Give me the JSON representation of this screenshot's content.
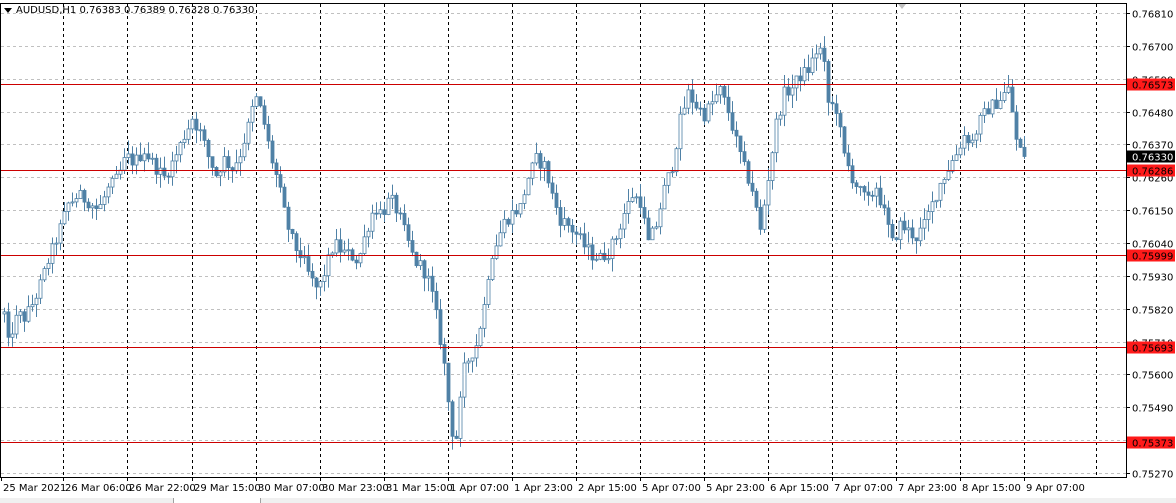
{
  "window": {
    "symbol_header": "AUDUSD,H1  0.76383 0.76389 0.76328 0.76330"
  },
  "colors": {
    "background": "#ffffff",
    "grid": "#c0c0c0",
    "vgrid": "#000000",
    "candle": "#4f81a6",
    "level_line": "#cc0000",
    "level_label_bg": "#ff1a1a",
    "current_price_bg": "#000000"
  },
  "chart_data": {
    "type": "candlestick",
    "symbol": "AUDUSD",
    "timeframe": "H1",
    "ohlc_header": {
      "open": 0.76383,
      "high": 0.76389,
      "low": 0.76328,
      "close": 0.7633
    },
    "ylim": [
      0.7525,
      0.7683
    ],
    "y_ticks": [
      "0.76810",
      "0.76700",
      "0.76590",
      "0.76480",
      "0.76370",
      "0.76260",
      "0.76150",
      "0.76040",
      "0.75930",
      "0.75820",
      "0.75710",
      "0.75600",
      "0.75490",
      "0.75380",
      "0.75270"
    ],
    "x_ticks": [
      "25 Mar 2021",
      "26 Mar 06:00",
      "26 Mar 22:00",
      "29 Mar 15:00",
      "30 Mar 07:00",
      "30 Mar 23:00",
      "31 Mar 15:00",
      "1 Apr 07:00",
      "1 Apr 23:00",
      "2 Apr 15:00",
      "5 Apr 07:00",
      "5 Apr 23:00",
      "6 Apr 15:00",
      "7 Apr 07:00",
      "7 Apr 23:00",
      "8 Apr 15:00",
      "9 Apr 07:00"
    ],
    "levels": [
      {
        "price": 0.76573,
        "label": "0.76573"
      },
      {
        "price": 0.76286,
        "label": "0.76286"
      },
      {
        "price": 0.75999,
        "label": "0.75999"
      },
      {
        "price": 0.75693,
        "label": "0.75693"
      },
      {
        "price": 0.75373,
        "label": "0.75373"
      }
    ],
    "current_price": {
      "price": 0.7633,
      "label": "0.76330"
    },
    "path": [
      [
        0,
        0.759
      ],
      [
        3,
        0.7584
      ],
      [
        7,
        0.7569
      ],
      [
        12,
        0.7575
      ],
      [
        18,
        0.758
      ],
      [
        24,
        0.7579
      ],
      [
        30,
        0.7582
      ],
      [
        38,
        0.7588
      ],
      [
        48,
        0.7598
      ],
      [
        58,
        0.7607
      ],
      [
        68,
        0.7617
      ],
      [
        78,
        0.762
      ],
      [
        88,
        0.7618
      ],
      [
        98,
        0.7615
      ],
      [
        108,
        0.7622
      ],
      [
        118,
        0.7626
      ],
      [
        126,
        0.7633
      ],
      [
        134,
        0.7631
      ],
      [
        144,
        0.7635
      ],
      [
        154,
        0.763
      ],
      [
        164,
        0.7626
      ],
      [
        174,
        0.7632
      ],
      [
        184,
        0.764
      ],
      [
        192,
        0.7646
      ],
      [
        200,
        0.7641
      ],
      [
        208,
        0.7633
      ],
      [
        216,
        0.7627
      ],
      [
        224,
        0.7632
      ],
      [
        232,
        0.7629
      ],
      [
        240,
        0.7634
      ],
      [
        248,
        0.7643
      ],
      [
        255,
        0.7653
      ],
      [
        262,
        0.7647
      ],
      [
        270,
        0.7634
      ],
      [
        278,
        0.7624
      ],
      [
        286,
        0.7611
      ],
      [
        294,
        0.7603
      ],
      [
        302,
        0.7599
      ],
      [
        310,
        0.7592
      ],
      [
        318,
        0.7588
      ],
      [
        326,
        0.7596
      ],
      [
        334,
        0.7604
      ],
      [
        342,
        0.7601
      ],
      [
        350,
        0.76
      ],
      [
        358,
        0.7598
      ],
      [
        366,
        0.7608
      ],
      [
        374,
        0.7616
      ],
      [
        382,
        0.7614
      ],
      [
        390,
        0.7619
      ],
      [
        398,
        0.7614
      ],
      [
        406,
        0.7606
      ],
      [
        414,
        0.7598
      ],
      [
        422,
        0.7596
      ],
      [
        430,
        0.759
      ],
      [
        438,
        0.7576
      ],
      [
        444,
        0.7563
      ],
      [
        450,
        0.7545
      ],
      [
        454,
        0.7537
      ],
      [
        458,
        0.7541
      ],
      [
        462,
        0.756
      ],
      [
        468,
        0.7565
      ],
      [
        476,
        0.757
      ],
      [
        484,
        0.7583
      ],
      [
        490,
        0.7599
      ],
      [
        496,
        0.7604
      ],
      [
        504,
        0.7611
      ],
      [
        512,
        0.7614
      ],
      [
        520,
        0.7616
      ],
      [
        528,
        0.7626
      ],
      [
        536,
        0.7632
      ],
      [
        544,
        0.763
      ],
      [
        552,
        0.762
      ],
      [
        560,
        0.7612
      ],
      [
        568,
        0.761
      ],
      [
        576,
        0.7607
      ],
      [
        584,
        0.7603
      ],
      [
        592,
        0.76
      ],
      [
        600,
        0.7599
      ],
      [
        608,
        0.7601
      ],
      [
        616,
        0.7606
      ],
      [
        624,
        0.7614
      ],
      [
        632,
        0.762
      ],
      [
        640,
        0.7618
      ],
      [
        648,
        0.7604
      ],
      [
        656,
        0.761
      ],
      [
        664,
        0.7622
      ],
      [
        672,
        0.763
      ],
      [
        680,
        0.7645
      ],
      [
        688,
        0.7654
      ],
      [
        696,
        0.765
      ],
      [
        704,
        0.7647
      ],
      [
        712,
        0.7651
      ],
      [
        720,
        0.7655
      ],
      [
        728,
        0.7648
      ],
      [
        736,
        0.7638
      ],
      [
        744,
        0.7629
      ],
      [
        752,
        0.7622
      ],
      [
        760,
        0.7608
      ],
      [
        768,
        0.7626
      ],
      [
        776,
        0.7644
      ],
      [
        784,
        0.7654
      ],
      [
        792,
        0.7656
      ],
      [
        800,
        0.766
      ],
      [
        808,
        0.7662
      ],
      [
        816,
        0.7668
      ],
      [
        822,
        0.7669
      ],
      [
        828,
        0.7651
      ],
      [
        836,
        0.7649
      ],
      [
        844,
        0.7633
      ],
      [
        852,
        0.7626
      ],
      [
        860,
        0.7621
      ],
      [
        868,
        0.7618
      ],
      [
        876,
        0.7623
      ],
      [
        884,
        0.7614
      ],
      [
        892,
        0.7604
      ],
      [
        900,
        0.761
      ],
      [
        908,
        0.7608
      ],
      [
        916,
        0.7606
      ],
      [
        924,
        0.761
      ],
      [
        932,
        0.7617
      ],
      [
        940,
        0.7624
      ],
      [
        948,
        0.7629
      ],
      [
        956,
        0.7634
      ],
      [
        964,
        0.764
      ],
      [
        972,
        0.7638
      ],
      [
        980,
        0.7645
      ],
      [
        988,
        0.7649
      ],
      [
        996,
        0.7651
      ],
      [
        1004,
        0.7654
      ],
      [
        1010,
        0.7656
      ],
      [
        1014,
        0.764
      ],
      [
        1020,
        0.7635
      ],
      [
        1026,
        0.7633
      ]
    ]
  }
}
